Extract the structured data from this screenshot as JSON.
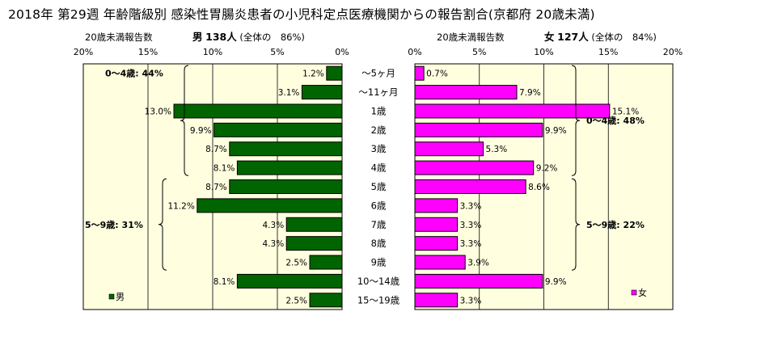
{
  "title": "2018年 第29週 年齢階級別 感染性胃腸炎患者の小児科定点医療機関からの報告割合(京都府 20歳未満)",
  "left_header": {
    "label": "20歳未満報告数",
    "sex": "男",
    "count": "138人",
    "share": "(全体の　86%)"
  },
  "right_header": {
    "label": "20歳未満報告数",
    "sex": "女",
    "count": "127人",
    "share": "(全体の　84%)"
  },
  "colors": {
    "male": "#006400",
    "female": "#ff00ff",
    "plot_bg": "#ffffe0",
    "grid": "#000000"
  },
  "chart_data": [
    {
      "type": "bar",
      "orientation": "horizontal",
      "direction": "right-to-left",
      "categories": [
        "～5ヶ月",
        "～11ヶ月",
        "1歳",
        "2歳",
        "3歳",
        "4歳",
        "5歳",
        "6歳",
        "7歳",
        "8歳",
        "9歳",
        "10～14歳",
        "15～19歳"
      ],
      "series": [
        {
          "name": "男",
          "values": [
            1.2,
            3.1,
            13.0,
            9.9,
            8.7,
            8.1,
            8.7,
            11.2,
            4.3,
            4.3,
            2.5,
            8.1,
            2.5
          ]
        }
      ],
      "value_labels": [
        "1.2%",
        "3.1%",
        "13.0%",
        "9.9%",
        "8.7%",
        "8.1%",
        "8.7%",
        "11.2%",
        "4.3%",
        "4.3%",
        "2.5%",
        "8.1%",
        "2.5%"
      ],
      "xlim": [
        0,
        20
      ],
      "xticks": [
        "20%",
        "15%",
        "10%",
        "5%",
        "0%"
      ],
      "grid": true,
      "legend": "bottom-left",
      "groups": [
        {
          "label": "0～4歳: 44%",
          "from": 0,
          "to": 5
        },
        {
          "label": "5～9歳: 31%",
          "from": 6,
          "to": 10
        }
      ]
    },
    {
      "type": "bar",
      "orientation": "horizontal",
      "direction": "left-to-right",
      "categories": [
        "～5ヶ月",
        "～11ヶ月",
        "1歳",
        "2歳",
        "3歳",
        "4歳",
        "5歳",
        "6歳",
        "7歳",
        "8歳",
        "9歳",
        "10～14歳",
        "15～19歳"
      ],
      "series": [
        {
          "name": "女",
          "values": [
            0.7,
            7.9,
            15.1,
            9.9,
            5.3,
            9.2,
            8.6,
            3.3,
            3.3,
            3.3,
            3.9,
            9.9,
            3.3
          ]
        }
      ],
      "value_labels": [
        "0.7%",
        "7.9%",
        "15.1%",
        "9.9%",
        "5.3%",
        "9.2%",
        "8.6%",
        "3.3%",
        "3.3%",
        "3.3%",
        "3.9%",
        "9.9%",
        "3.3%"
      ],
      "xlim": [
        0,
        20
      ],
      "xticks": [
        "0%",
        "5%",
        "10%",
        "15%",
        "20%"
      ],
      "grid": true,
      "legend": "bottom-right",
      "groups": [
        {
          "label": "0～4歳: 48%",
          "from": 0,
          "to": 5
        },
        {
          "label": "5～9歳: 22%",
          "from": 6,
          "to": 10
        }
      ]
    }
  ]
}
